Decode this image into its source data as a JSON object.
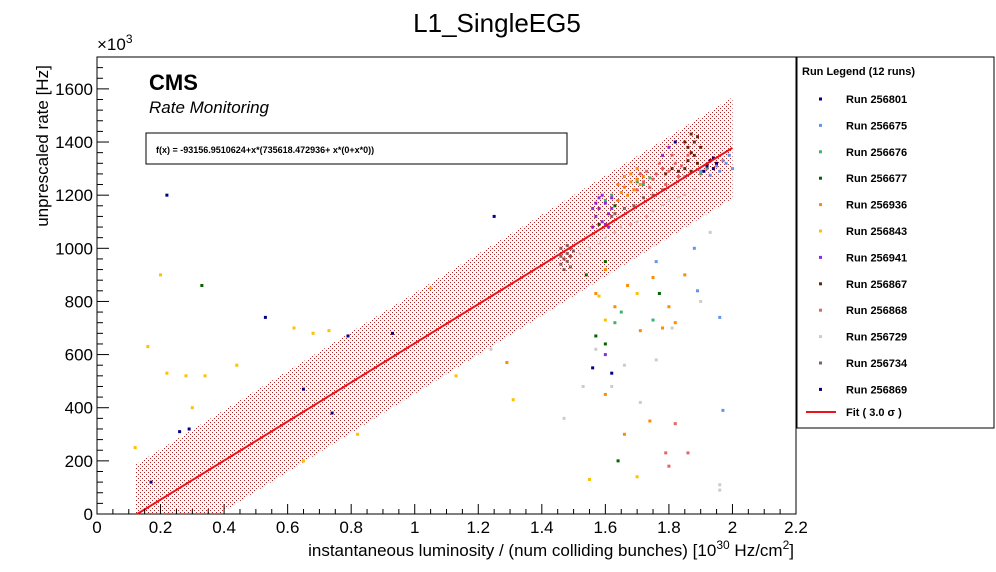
{
  "chart_data": {
    "type": "scatter",
    "title": "L1_SingleEG5",
    "xlabel": "instantaneous luminosity / (num colliding bunches) [10",
    "xlabel_exp": "30",
    "xlabel_unit": " Hz/cm",
    "xlabel_unit_exp": "2",
    "xlabel_end": "]",
    "ylabel": "unprescaled rate [Hz]",
    "y_multiplier": "×10",
    "y_multiplier_exp": "3",
    "xlim": [
      0,
      2.2
    ],
    "ylim": [
      0,
      1720
    ],
    "x_ticks": [
      "0",
      "0.2",
      "0.4",
      "0.6",
      "0.8",
      "1",
      "1.2",
      "1.4",
      "1.6",
      "1.8",
      "2",
      "2.2"
    ],
    "x_tick_values": [
      0,
      0.2,
      0.4,
      0.6,
      0.8,
      1.0,
      1.2,
      1.4,
      1.6,
      1.8,
      2.0,
      2.2
    ],
    "y_ticks": [
      "0",
      "200",
      "400",
      "600",
      "800",
      "1000",
      "1200",
      "1400",
      "1600"
    ],
    "y_tick_values": [
      0,
      200,
      400,
      600,
      800,
      1000,
      1200,
      1400,
      1600
    ],
    "cms_label": "CMS",
    "cms_sublabel": "Rate Monitoring",
    "fit_formula": "f(x) = -93156.9510624+x*(735618.472936+ x*(0+x*0))",
    "fit": {
      "intercept": -93.1569510624,
      "slope": 735.618472936,
      "x_range": [
        0.12,
        2.0
      ],
      "band": 190
    },
    "legend_title": "Run Legend (12 runs)",
    "legend_fit_label": "Fit ( 3.0  σ )",
    "series": [
      {
        "name": "Run 256801",
        "color": "#00008b",
        "points": [
          [
            0.17,
            120
          ],
          [
            0.26,
            310
          ],
          [
            0.29,
            320
          ],
          [
            0.53,
            740
          ],
          [
            0.65,
            470
          ],
          [
            0.74,
            380
          ],
          [
            0.79,
            670
          ],
          [
            1.25,
            1120
          ],
          [
            1.56,
            550
          ],
          [
            1.82,
            1400
          ],
          [
            1.62,
            530
          ]
        ]
      },
      {
        "name": "Run 256675",
        "color": "#6495ed",
        "points": [
          [
            1.85,
            1270
          ],
          [
            1.9,
            1290
          ],
          [
            1.92,
            1300
          ],
          [
            1.95,
            1310
          ],
          [
            1.97,
            1330
          ],
          [
            1.98,
            1320
          ],
          [
            1.99,
            1350
          ],
          [
            1.96,
            1290
          ],
          [
            2.0,
            1300
          ],
          [
            1.93,
            1275
          ],
          [
            1.97,
            390
          ],
          [
            1.96,
            740
          ],
          [
            1.89,
            840
          ],
          [
            1.88,
            1000
          ],
          [
            1.76,
            950
          ]
        ]
      },
      {
        "name": "Run 256676",
        "color": "#3cb371",
        "points": [
          [
            1.7,
            1250
          ],
          [
            1.72,
            1240
          ],
          [
            1.74,
            1265
          ],
          [
            1.9,
            1280
          ],
          [
            1.92,
            1305
          ],
          [
            1.6,
            1180
          ],
          [
            1.62,
            1200
          ],
          [
            1.63,
            720
          ],
          [
            1.75,
            730
          ],
          [
            1.65,
            760
          ]
        ]
      },
      {
        "name": "Run 256677",
        "color": "#006400",
        "points": [
          [
            0.33,
            860
          ],
          [
            1.54,
            900
          ],
          [
            1.6,
            950
          ],
          [
            1.63,
            1160
          ],
          [
            1.58,
            1090
          ],
          [
            1.6,
            640
          ],
          [
            1.57,
            670
          ],
          [
            1.64,
            200
          ],
          [
            1.77,
            830
          ]
        ]
      },
      {
        "name": "Run 256936",
        "color": "#ff8c00",
        "points": [
          [
            1.64,
            1180
          ],
          [
            1.65,
            1210
          ],
          [
            1.66,
            1230
          ],
          [
            1.67,
            1200
          ],
          [
            1.68,
            1250
          ],
          [
            1.69,
            1220
          ],
          [
            1.7,
            1260
          ],
          [
            1.71,
            1240
          ],
          [
            1.72,
            1270
          ],
          [
            1.64,
            1240
          ],
          [
            1.66,
            1270
          ],
          [
            1.68,
            1280
          ],
          [
            1.7,
            1300
          ],
          [
            1.6,
            920
          ],
          [
            1.63,
            780
          ],
          [
            1.75,
            890
          ],
          [
            1.78,
            700
          ],
          [
            1.8,
            780
          ],
          [
            1.67,
            860
          ],
          [
            1.71,
            690
          ],
          [
            1.82,
            720
          ],
          [
            1.85,
            900
          ],
          [
            1.57,
            830
          ],
          [
            1.66,
            300
          ],
          [
            1.74,
            350
          ],
          [
            1.29,
            570
          ],
          [
            1.6,
            450
          ]
        ]
      },
      {
        "name": "Run 256843",
        "color": "#ffc000",
        "points": [
          [
            0.12,
            250
          ],
          [
            0.16,
            630
          ],
          [
            0.2,
            900
          ],
          [
            0.22,
            530
          ],
          [
            0.28,
            520
          ],
          [
            0.34,
            520
          ],
          [
            0.44,
            560
          ],
          [
            0.62,
            700
          ],
          [
            0.68,
            680
          ],
          [
            0.73,
            690
          ],
          [
            1.05,
            850
          ],
          [
            1.13,
            520
          ],
          [
            1.31,
            430
          ],
          [
            1.6,
            730
          ],
          [
            1.58,
            820
          ],
          [
            1.7,
            830
          ],
          [
            0.3,
            400
          ],
          [
            0.65,
            200
          ],
          [
            1.55,
            130
          ],
          [
            1.7,
            140
          ],
          [
            0.82,
            300
          ]
        ]
      },
      {
        "name": "Run 256941",
        "color": "#8a2be2",
        "points": [
          [
            1.56,
            1080
          ],
          [
            1.57,
            1120
          ],
          [
            1.58,
            1150
          ],
          [
            1.59,
            1100
          ],
          [
            1.6,
            1170
          ],
          [
            1.61,
            1130
          ],
          [
            1.62,
            1190
          ],
          [
            1.57,
            1170
          ],
          [
            1.59,
            1200
          ],
          [
            1.61,
            1080
          ],
          [
            1.56,
            1150
          ],
          [
            1.6,
            1090
          ],
          [
            1.58,
            1190
          ],
          [
            1.62,
            1150
          ],
          [
            1.6,
            600
          ],
          [
            1.78,
            1350
          ],
          [
            1.8,
            1380
          ]
        ]
      },
      {
        "name": "Run 256867",
        "color": "#5c2a0e",
        "points": [
          [
            1.85,
            1300
          ],
          [
            1.86,
            1330
          ],
          [
            1.87,
            1360
          ],
          [
            1.88,
            1400
          ],
          [
            1.89,
            1420
          ],
          [
            1.86,
            1380
          ],
          [
            1.88,
            1350
          ],
          [
            1.89,
            1320
          ],
          [
            1.87,
            1290
          ],
          [
            1.9,
            1380
          ],
          [
            1.85,
            1400
          ],
          [
            1.79,
            1280
          ],
          [
            1.83,
            1290
          ],
          [
            1.87,
            1430
          ],
          [
            1.81,
            1300
          ]
        ]
      },
      {
        "name": "Run 256868",
        "color": "#e06666",
        "points": [
          [
            1.7,
            1220
          ],
          [
            1.72,
            1250
          ],
          [
            1.74,
            1230
          ],
          [
            1.76,
            1280
          ],
          [
            1.78,
            1300
          ],
          [
            1.8,
            1290
          ],
          [
            1.82,
            1320
          ],
          [
            1.84,
            1310
          ],
          [
            1.73,
            1290
          ],
          [
            1.77,
            1320
          ],
          [
            1.81,
            1350
          ],
          [
            1.83,
            1270
          ],
          [
            1.86,
            1350
          ],
          [
            1.75,
            1260
          ],
          [
            1.79,
            1240
          ],
          [
            1.71,
            1280
          ],
          [
            1.79,
            230
          ],
          [
            1.8,
            180
          ],
          [
            1.86,
            230
          ],
          [
            1.82,
            340
          ]
        ]
      },
      {
        "name": "Run 256729",
        "color": "#cccccc",
        "points": [
          [
            1.55,
            1000
          ],
          [
            1.6,
            1040
          ],
          [
            1.65,
            1080
          ],
          [
            1.7,
            1100
          ],
          [
            1.75,
            1140
          ],
          [
            1.8,
            1180
          ],
          [
            1.85,
            1200
          ],
          [
            1.58,
            1020
          ],
          [
            1.63,
            1060
          ],
          [
            1.68,
            1090
          ],
          [
            1.73,
            1120
          ],
          [
            1.78,
            1160
          ],
          [
            1.83,
            1190
          ],
          [
            1.88,
            1220
          ],
          [
            1.52,
            980
          ],
          [
            1.96,
            90
          ],
          [
            1.96,
            110
          ],
          [
            1.47,
            360
          ],
          [
            1.53,
            480
          ],
          [
            1.57,
            620
          ],
          [
            1.62,
            480
          ],
          [
            1.66,
            560
          ],
          [
            1.71,
            420
          ],
          [
            1.76,
            580
          ],
          [
            1.81,
            700
          ],
          [
            1.9,
            800
          ],
          [
            1.93,
            1060
          ],
          [
            1.24,
            620
          ]
        ]
      },
      {
        "name": "Run 256734",
        "color": "#806060",
        "points": [
          [
            1.46,
            940
          ],
          [
            1.47,
            960
          ],
          [
            1.48,
            980
          ],
          [
            1.49,
            1000
          ],
          [
            1.46,
            1000
          ],
          [
            1.47,
            920
          ],
          [
            1.48,
            950
          ],
          [
            1.49,
            970
          ],
          [
            1.5,
            990
          ],
          [
            1.46,
            970
          ],
          [
            1.48,
            1010
          ],
          [
            1.49,
            930
          ],
          [
            1.63,
            1130
          ],
          [
            1.66,
            1150
          ],
          [
            1.69,
            1160
          ],
          [
            1.72,
            1190
          ],
          [
            1.75,
            1200
          ],
          [
            1.78,
            1220
          ],
          [
            1.62,
            1120
          ]
        ]
      },
      {
        "name": "Run 256869",
        "color": "#000080",
        "points": [
          [
            1.92,
            1310
          ],
          [
            1.93,
            1330
          ],
          [
            1.94,
            1300
          ],
          [
            1.95,
            1320
          ],
          [
            1.91,
            1290
          ],
          [
            1.94,
            1340
          ],
          [
            0.22,
            1200
          ],
          [
            0.93,
            680
          ]
        ]
      }
    ]
  }
}
